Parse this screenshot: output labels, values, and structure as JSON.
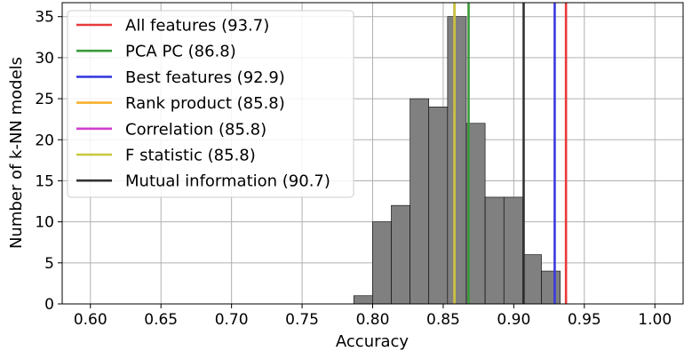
{
  "chart_data": {
    "type": "bar",
    "subtype": "histogram-with-reference-lines",
    "xlabel": "Accuracy",
    "ylabel": "Number of k-NN models",
    "xlim": [
      0.58,
      1.02
    ],
    "ylim": [
      0,
      36.7
    ],
    "grid": true,
    "legend_position": "top-left",
    "bar_color": "#808080",
    "x_ticks": [
      0.6,
      0.65,
      0.7,
      0.75,
      0.8,
      0.85,
      0.9,
      0.95,
      1.0
    ],
    "x_tick_labels": [
      "0.60",
      "0.65",
      "0.70",
      "0.75",
      "0.80",
      "0.85",
      "0.90",
      "0.95",
      "1.00"
    ],
    "y_ticks": [
      0,
      5,
      10,
      15,
      20,
      25,
      30,
      35
    ],
    "y_tick_labels": [
      "0",
      "5",
      "10",
      "15",
      "20",
      "25",
      "30",
      "35"
    ],
    "bins": [
      {
        "x0": 0.7866,
        "x1": 0.7999,
        "count": 1
      },
      {
        "x0": 0.7999,
        "x1": 0.8132,
        "count": 10
      },
      {
        "x0": 0.8132,
        "x1": 0.8265,
        "count": 12
      },
      {
        "x0": 0.8265,
        "x1": 0.8398,
        "count": 25
      },
      {
        "x0": 0.8398,
        "x1": 0.8531,
        "count": 24
      },
      {
        "x0": 0.8531,
        "x1": 0.8664,
        "count": 35
      },
      {
        "x0": 0.8664,
        "x1": 0.8797,
        "count": 22
      },
      {
        "x0": 0.8797,
        "x1": 0.893,
        "count": 13
      },
      {
        "x0": 0.893,
        "x1": 0.9063,
        "count": 13
      },
      {
        "x0": 0.9063,
        "x1": 0.9196,
        "count": 6
      },
      {
        "x0": 0.9196,
        "x1": 0.9329,
        "count": 4
      }
    ],
    "series": [
      {
        "name": "All features (93.7)",
        "value": 0.937,
        "color": "#e8393a"
      },
      {
        "name": "PCA PC (86.8)",
        "value": 0.868,
        "color": "#3a9a3a"
      },
      {
        "name": "Best features (92.9)",
        "value": 0.929,
        "color": "#3a3ae0"
      },
      {
        "name": "Rank product (85.8)",
        "value": 0.858,
        "color": "#f6b02e"
      },
      {
        "name": "Correlation (85.8)",
        "value": 0.858,
        "color": "#cf3fcf"
      },
      {
        "name": "F statistic (85.8)",
        "value": 0.858,
        "color": "#c8c83a"
      },
      {
        "name": "Mutual information (90.7)",
        "value": 0.907,
        "color": "#333333"
      }
    ]
  }
}
